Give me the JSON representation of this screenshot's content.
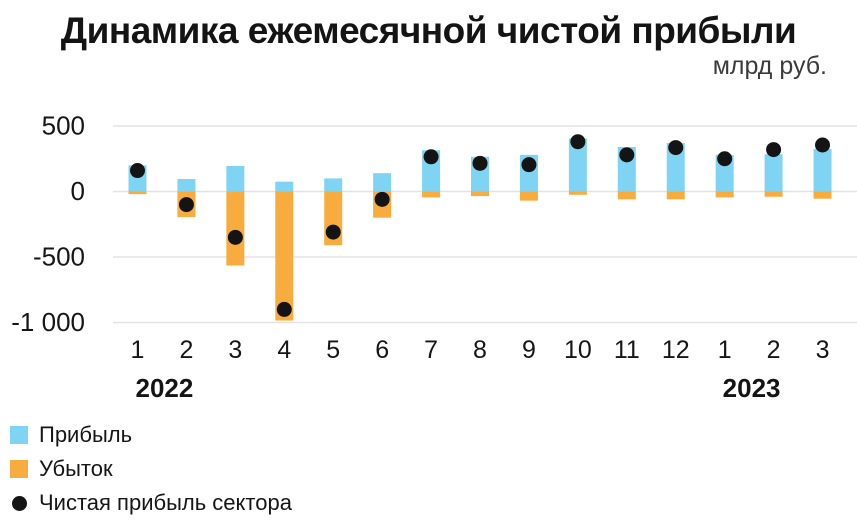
{
  "header": {
    "title": "Динамика ежемесячной чистой прибыли",
    "units": "млрд руб."
  },
  "chart_data": {
    "type": "bar",
    "title": "Динамика ежемесячной чистой прибыли",
    "subtitle": "млрд руб.",
    "categories": [
      "1",
      "2",
      "3",
      "4",
      "5",
      "6",
      "7",
      "8",
      "9",
      "10",
      "11",
      "12",
      "1",
      "2",
      "3"
    ],
    "year_groups": [
      {
        "label": "2022",
        "start_index": 0
      },
      {
        "label": "2023",
        "start_index": 12
      }
    ],
    "series": [
      {
        "name": "Прибыль",
        "type": "bar",
        "color": "#7fd4f4",
        "values": [
          200,
          95,
          195,
          75,
          100,
          140,
          315,
          265,
          280,
          405,
          340,
          370,
          280,
          285,
          325
        ]
      },
      {
        "name": "Убыток",
        "type": "bar",
        "color": "#f8ac3e",
        "values": [
          -20,
          -195,
          -565,
          -985,
          -410,
          -200,
          -45,
          -35,
          -70,
          -25,
          -60,
          -60,
          -45,
          -40,
          -55
        ]
      },
      {
        "name": "Чистая прибыль сектора",
        "type": "scatter",
        "color": "#141414",
        "values": [
          160,
          -100,
          -350,
          -900,
          -310,
          -60,
          265,
          215,
          205,
          380,
          280,
          335,
          250,
          320,
          355
        ]
      }
    ],
    "yticks": [
      500,
      0,
      -500,
      -1000
    ],
    "ytick_labels": [
      "500",
      "0",
      "-500",
      "-1 000"
    ],
    "ylim": [
      -1050,
      560
    ],
    "grid": true,
    "gridline_color": "#e3e3e3",
    "legend_position": "bottom-left"
  },
  "legend": {
    "items": [
      {
        "label": "Прибыль",
        "swatch": "square",
        "color": "#7fd4f4"
      },
      {
        "label": "Убыток",
        "swatch": "square",
        "color": "#f8ac3e"
      },
      {
        "label": "Чистая прибыль сектора",
        "swatch": "dot",
        "color": "#141414"
      }
    ]
  }
}
